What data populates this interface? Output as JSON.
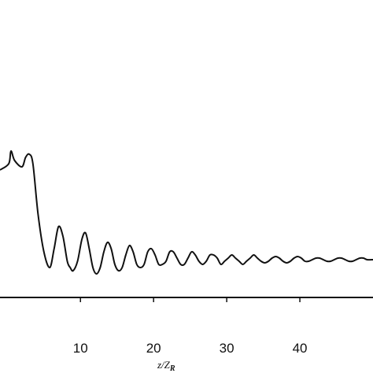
{
  "chart_data": {
    "type": "line",
    "xlabel": "z/Z",
    "xlabel_sub": "R",
    "ylabel": "",
    "xlim": [
      -1,
      50
    ],
    "ylim": [
      0,
      1
    ],
    "xticks": [
      10,
      20,
      30,
      40
    ],
    "grid": false,
    "legend": "none",
    "colors": {
      "line": "#111111",
      "axis": "#111111",
      "background": "#ffffff"
    },
    "series": [
      {
        "name": "",
        "x": [
          -1.0,
          0.2,
          0.5,
          1.0,
          2.0,
          2.5,
          3.0,
          3.5,
          4.2,
          5.0,
          5.8,
          6.4,
          7.0,
          7.6,
          8.2,
          8.6,
          9.0,
          9.6,
          10.2,
          10.7,
          11.2,
          11.7,
          12.2,
          12.7,
          13.2,
          13.7,
          14.2,
          14.7,
          15.2,
          15.7,
          16.2,
          16.7,
          17.2,
          17.7,
          18.2,
          18.7,
          19.2,
          19.7,
          20.2,
          20.7,
          21.2,
          21.7,
          22.2,
          22.7,
          23.2,
          23.7,
          24.2,
          24.7,
          25.2,
          25.7,
          26.2,
          26.7,
          27.2,
          27.7,
          28.2,
          28.7,
          29.2,
          29.7,
          30.2,
          30.7,
          31.2,
          31.7,
          32.2,
          32.7,
          33.2,
          33.7,
          34.2,
          34.7,
          35.2,
          35.7,
          36.2,
          36.7,
          37.2,
          37.7,
          38.2,
          38.7,
          39.2,
          39.7,
          40.2,
          40.7,
          41.2,
          41.7,
          42.2,
          42.7,
          43.2,
          43.7,
          44.2,
          44.7,
          45.2,
          45.7,
          46.2,
          46.7,
          47.2,
          47.7,
          48.2,
          48.7,
          49.2,
          50.0
        ],
        "y": [
          0.46,
          0.48,
          0.52,
          0.49,
          0.47,
          0.5,
          0.51,
          0.48,
          0.32,
          0.2,
          0.15,
          0.21,
          0.28,
          0.25,
          0.17,
          0.15,
          0.14,
          0.17,
          0.24,
          0.26,
          0.21,
          0.15,
          0.13,
          0.15,
          0.2,
          0.23,
          0.21,
          0.16,
          0.14,
          0.15,
          0.19,
          0.22,
          0.2,
          0.16,
          0.15,
          0.16,
          0.2,
          0.21,
          0.19,
          0.16,
          0.16,
          0.17,
          0.2,
          0.2,
          0.18,
          0.16,
          0.16,
          0.18,
          0.2,
          0.19,
          0.17,
          0.16,
          0.17,
          0.19,
          0.19,
          0.18,
          0.16,
          0.17,
          0.18,
          0.19,
          0.18,
          0.17,
          0.16,
          0.17,
          0.18,
          0.19,
          0.18,
          0.17,
          0.165,
          0.17,
          0.18,
          0.185,
          0.18,
          0.17,
          0.165,
          0.17,
          0.18,
          0.185,
          0.18,
          0.17,
          0.17,
          0.175,
          0.18,
          0.18,
          0.175,
          0.17,
          0.17,
          0.175,
          0.18,
          0.18,
          0.175,
          0.17,
          0.17,
          0.175,
          0.18,
          0.18,
          0.175,
          0.175
        ]
      }
    ]
  }
}
